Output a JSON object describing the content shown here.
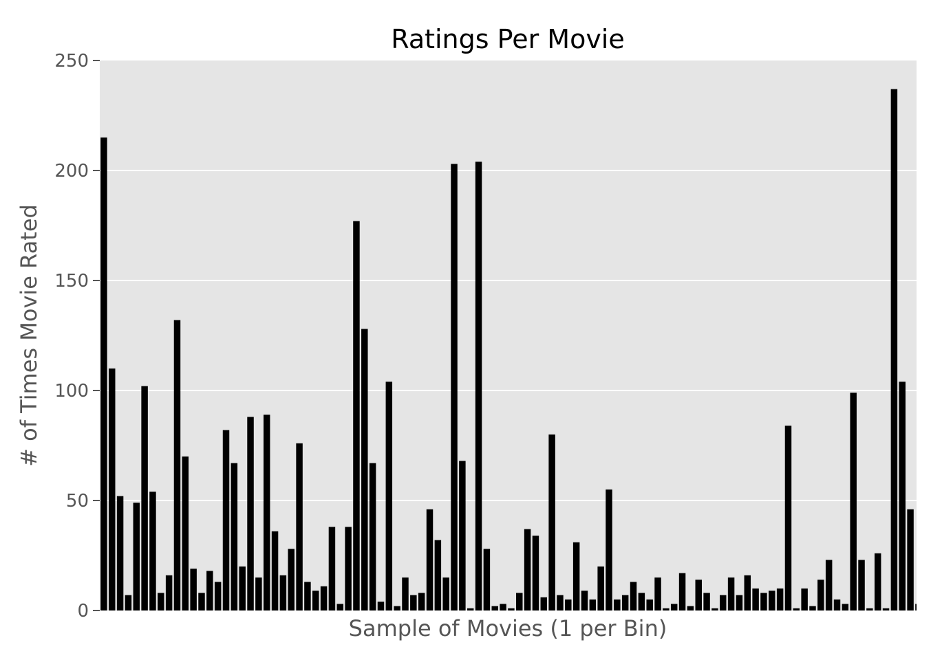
{
  "chart_data": {
    "type": "bar",
    "title": "Ratings Per Movie",
    "xlabel": "Sample of Movies (1 per Bin)",
    "ylabel": "# of Times Movie Rated",
    "ylim": [
      0,
      250
    ],
    "yticks": [
      0,
      50,
      100,
      150,
      200,
      250
    ],
    "xticks_shown": false,
    "grid": "horizontal",
    "legend": "none",
    "colors": {
      "bar": "#000000",
      "plot_background": "#e5e5e5",
      "grid": "#ffffff",
      "tick_text": "#555555"
    },
    "values": [
      215,
      110,
      52,
      7,
      49,
      102,
      54,
      8,
      16,
      132,
      70,
      19,
      8,
      18,
      13,
      82,
      67,
      20,
      88,
      15,
      89,
      36,
      16,
      28,
      76,
      13,
      9,
      11,
      38,
      3,
      38,
      177,
      128,
      67,
      4,
      104,
      2,
      15,
      7,
      8,
      46,
      32,
      15,
      203,
      68,
      1,
      204,
      28,
      2,
      3,
      1,
      8,
      37,
      34,
      6,
      80,
      7,
      5,
      31,
      9,
      5,
      20,
      55,
      5,
      7,
      13,
      8,
      5,
      15,
      1,
      3,
      17,
      2,
      14,
      8,
      1,
      7,
      15,
      7,
      16,
      10,
      8,
      9,
      10,
      84,
      1,
      10,
      2,
      14,
      23,
      5,
      3,
      99,
      23,
      1,
      26,
      1,
      237,
      104,
      46,
      3
    ]
  }
}
